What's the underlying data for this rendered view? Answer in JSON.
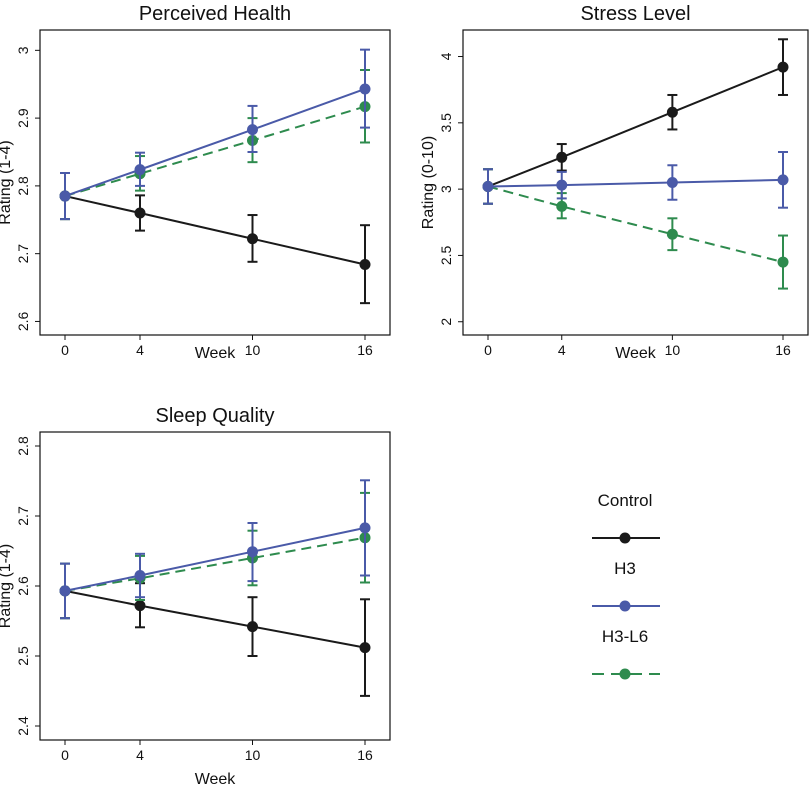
{
  "chart_data": [
    {
      "type": "line",
      "title": "Perceived Health",
      "xlabel": "Week",
      "ylabel": "Rating (1-4)",
      "x": [
        0,
        4,
        10,
        16
      ],
      "ylim": [
        2.58,
        3.03
      ],
      "yticks": [
        2.6,
        2.7,
        2.8,
        2.9,
        3
      ],
      "yticklabels": [
        "2.6",
        "2.7",
        "2.8",
        "2.9",
        "3"
      ],
      "series": [
        {
          "name": "Control",
          "values": [
            2.785,
            2.76,
            2.722,
            2.684
          ],
          "err_low": [
            2.751,
            2.734,
            2.688,
            2.627
          ],
          "err_high": [
            2.819,
            2.786,
            2.757,
            2.742
          ]
        },
        {
          "name": "H3",
          "values": [
            2.785,
            2.824,
            2.883,
            2.943
          ],
          "err_low": [
            2.751,
            2.8,
            2.85,
            2.886
          ],
          "err_high": [
            2.819,
            2.849,
            2.918,
            3.001
          ]
        },
        {
          "name": "H3-L6",
          "values": [
            2.785,
            2.818,
            2.867,
            2.917
          ],
          "err_low": [
            2.751,
            2.793,
            2.835,
            2.864
          ],
          "err_high": [
            2.819,
            2.844,
            2.9,
            2.971
          ]
        }
      ]
    },
    {
      "type": "line",
      "title": "Stress Level",
      "xlabel": "Week",
      "ylabel": "Rating (0-10)",
      "x": [
        0,
        4,
        10,
        16
      ],
      "ylim": [
        1.9,
        4.2
      ],
      "yticks": [
        2,
        2.5,
        3,
        3.5,
        4
      ],
      "yticklabels": [
        "2",
        "2.5",
        "3",
        "3.5",
        "4"
      ],
      "series": [
        {
          "name": "Control",
          "values": [
            3.02,
            3.24,
            3.58,
            3.92
          ],
          "err_low": [
            2.89,
            3.14,
            3.45,
            3.71
          ],
          "err_high": [
            3.15,
            3.34,
            3.71,
            4.13
          ]
        },
        {
          "name": "H3",
          "values": [
            3.02,
            3.03,
            3.05,
            3.07
          ],
          "err_low": [
            2.89,
            2.93,
            2.92,
            2.86
          ],
          "err_high": [
            3.15,
            3.13,
            3.18,
            3.28
          ]
        },
        {
          "name": "H3-L6",
          "values": [
            3.02,
            2.87,
            2.66,
            2.45
          ],
          "err_low": [
            2.89,
            2.78,
            2.54,
            2.25
          ],
          "err_high": [
            3.15,
            2.97,
            2.78,
            2.65
          ]
        }
      ]
    },
    {
      "type": "line",
      "title": "Sleep Quality",
      "xlabel": "Week",
      "ylabel": "Rating (1-4)",
      "x": [
        0,
        4,
        10,
        16
      ],
      "ylim": [
        2.38,
        2.82
      ],
      "yticks": [
        2.4,
        2.5,
        2.6,
        2.7,
        2.8
      ],
      "yticklabels": [
        "2.4",
        "2.5",
        "2.6",
        "2.7",
        "2.8"
      ],
      "series": [
        {
          "name": "Control",
          "values": [
            2.593,
            2.572,
            2.542,
            2.512
          ],
          "err_low": [
            2.554,
            2.541,
            2.5,
            2.443
          ],
          "err_high": [
            2.632,
            2.604,
            2.584,
            2.581
          ]
        },
        {
          "name": "H3",
          "values": [
            2.593,
            2.615,
            2.649,
            2.683
          ],
          "err_low": [
            2.554,
            2.584,
            2.607,
            2.615
          ],
          "err_high": [
            2.632,
            2.646,
            2.69,
            2.751
          ]
        },
        {
          "name": "H3-L6",
          "values": [
            2.593,
            2.611,
            2.64,
            2.669
          ],
          "err_low": [
            2.554,
            2.58,
            2.601,
            2.605
          ],
          "err_high": [
            2.632,
            2.643,
            2.679,
            2.733
          ]
        }
      ]
    }
  ],
  "legend": {
    "position": "bottom-right",
    "entries": [
      {
        "name": "Control",
        "color": "#1a1a1a",
        "dashed": false
      },
      {
        "name": "H3",
        "color": "#4a5aa8",
        "dashed": false
      },
      {
        "name": "H3-L6",
        "color": "#2e8b4e",
        "dashed": true
      }
    ]
  },
  "colors": {
    "Control": "#1a1a1a",
    "H3": "#4a5aa8",
    "H3-L6": "#2e8b4e"
  }
}
